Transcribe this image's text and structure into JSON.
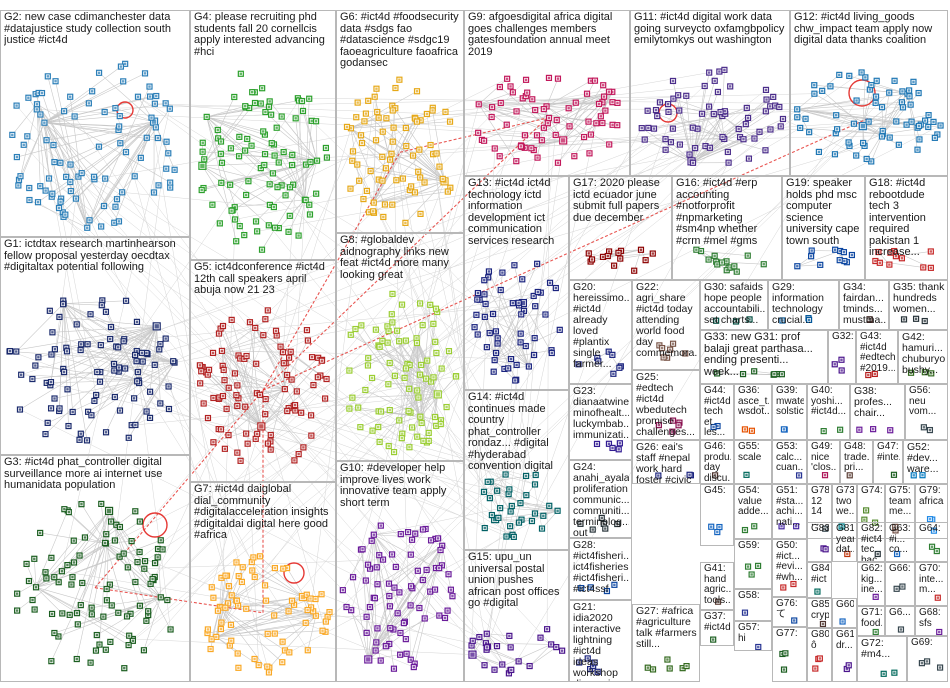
{
  "groups": [
    {
      "id": "G2",
      "label": "G2: new case cdimanchester data #datajustice study collection south justice #ict4d",
      "color": "#2c7fb8"
    },
    {
      "id": "G4",
      "label": "G4: please recruiting phd students fall 20 cornellcis apply interested advancing #hci",
      "color": "#2ca02c"
    },
    {
      "id": "G6",
      "label": "G6: #ict4d #foodsecurity data #sdgs fao #datascience #sdgc19 faoeagriculture faoafrica godansec",
      "color": "#e6a817"
    },
    {
      "id": "G9",
      "label": "G9: afgoesdigital africa digital goes challenges members gatesfoundation annual meet 2019",
      "color": "#c2185b"
    },
    {
      "id": "G11",
      "label": "G11: #ict4d digital work data going surveycto oxfamgbpolicy emilytomkys out washington",
      "color": "#4a2c8a"
    },
    {
      "id": "G12",
      "label": "G12: #ict4d living_goods chw_impact team apply now digital data thanks coalition",
      "color": "#1f77b4"
    },
    {
      "id": "G1",
      "label": "G1: ictdtax research martinhearson fellow proposal yesterday oecdtax #digitaltax potential following",
      "color": "#1a2a6c"
    },
    {
      "id": "G5",
      "label": "G5: ict4dconference #ict4d 12th call speakers april abuja now 21 23",
      "color": "#b22222"
    },
    {
      "id": "G8",
      "label": "G8: #globaldev aidnography links new feat #ict4d more many looking great",
      "color": "#9acd32"
    },
    {
      "id": "G13",
      "label": "G13: #ict4d ict4d technology ictd information development ict communication services research",
      "color": "#1a237e"
    },
    {
      "id": "G17",
      "label": "G17: 2020 please ictd ecuador june submit full papers due december",
      "color": "#8b0000"
    },
    {
      "id": "G16",
      "label": "G16: #ict4d #erp accounting #notforprofit #npmarketing #sm4np whether #crm #mel #gms",
      "color": "#2e7d32"
    },
    {
      "id": "G19",
      "label": "G19: speaker holds phd msc computer science university cape town south",
      "color": "#0d47a1"
    },
    {
      "id": "G18",
      "label": "G18: #ict4d rebootdude tech 3 intervention required pakistan 1 increase...",
      "color": "#c62828"
    },
    {
      "id": "G20",
      "label": "G20: hereissimo... #ict4d already loved #plantix single farmer...",
      "color": "#1a237e"
    },
    {
      "id": "G22",
      "label": "G22: agri_share #ict4d today attending world food day commemora...",
      "color": "#795548"
    },
    {
      "id": "G30",
      "label": "G30: safaids hope people accountabili... set charts...",
      "color": "#004d40"
    },
    {
      "id": "G29",
      "label": "G29: information technology crucial...",
      "color": "#01579b"
    },
    {
      "id": "G34",
      "label": "G34: fairdan... tminds... mustma...",
      "color": "#3e2723"
    },
    {
      "id": "G35",
      "label": "G35: thank hundreds women...",
      "color": "#263238"
    },
    {
      "id": "G33",
      "label": "G33: new G31: prof balaji great parthasa... ending presenti... week...",
      "color": "#1b5e20"
    },
    {
      "id": "G32",
      "label": "G32:",
      "color": "#4a148c"
    },
    {
      "id": "G43",
      "label": "G43: #ict4d #edtech #2019...",
      "color": "#b71c1c"
    },
    {
      "id": "G42",
      "label": "G42: hamuri... chuburyo bushy...",
      "color": "#33691e"
    },
    {
      "id": "G14",
      "label": "G14: #ict4d continues made country phat_controller rondaz... #digital #hyderabad convention digital",
      "color": "#006064"
    },
    {
      "id": "G23",
      "label": "G23: dianaatwine minofhealt... luckymbab... immunizati...",
      "color": "#311b92"
    },
    {
      "id": "G25",
      "label": "G25: #edtech #ict4d wbedutech promise challenges...",
      "color": "#880e4f"
    },
    {
      "id": "G44",
      "label": "G44: #ict4d tech et les...",
      "color": "#0d47a1"
    },
    {
      "id": "G36",
      "label": "G36: asce_t... wsdot...",
      "color": "#e65100"
    },
    {
      "id": "G39",
      "label": "G39: mwater solstic...",
      "color": "#1565c0"
    },
    {
      "id": "G40",
      "label": "G40: yoshi... #ict4d...",
      "color": "#2e7d32"
    },
    {
      "id": "G38",
      "label": "G38: profes... chair...",
      "color": "#6a1b9a"
    },
    {
      "id": "G56",
      "label": "G56: neu vom...",
      "color": "#37474f"
    },
    {
      "id": "G26",
      "label": "G26: eai's staff #nepal work hard foster #civic engageme...",
      "color": "#1a237e"
    },
    {
      "id": "G46",
      "label": "G46: produ... day discu...",
      "color": "#4e342e"
    },
    {
      "id": "G55",
      "label": "G55: scale",
      "color": "#00695c"
    },
    {
      "id": "G53",
      "label": "G53: calc... cuan...",
      "color": "#283593"
    },
    {
      "id": "G49",
      "label": "G49: nice 'clos...",
      "color": "#ad1457"
    },
    {
      "id": "G48",
      "label": "G48: trade... pri...",
      "color": "#5d4037"
    },
    {
      "id": "G47",
      "label": "G47: #inte...",
      "color": "#1b5e20"
    },
    {
      "id": "G52",
      "label": "G52: #dev... ware...",
      "color": "#0277bd"
    },
    {
      "id": "G3",
      "label": "G3: #ict4d phat_controller digital surveillance more ai internet use humanidata population",
      "color": "#1b5e20"
    },
    {
      "id": "G7",
      "label": "G7: #ict4d daiglobal dial_community #digitalacceleration insights #digitaldai digital here good #africa",
      "color": "#f9a825"
    },
    {
      "id": "G10",
      "label": "G10: #developer help improve lives work innovative team apply short term",
      "color": "#6a1b9a"
    },
    {
      "id": "G24",
      "label": "G24: anahi_ayala proliferation communic... communiti... terminolog... out control...",
      "color": "#263238"
    },
    {
      "id": "G45",
      "label": "G45:",
      "color": "#1565c0"
    },
    {
      "id": "G54",
      "label": "G54: value adde...",
      "color": "#2e7d32"
    },
    {
      "id": "G51",
      "label": "G51: #sta... achi... nati...",
      "color": "#4527a0"
    },
    {
      "id": "G78",
      "label": "G78: 12 14 ...",
      "color": "#37474f"
    },
    {
      "id": "G73",
      "label": "G73: two we...",
      "color": "#00838f"
    },
    {
      "id": "G74",
      "label": "G74:",
      "color": "#558b2f"
    },
    {
      "id": "G75",
      "label": "G75: team me...",
      "color": "#6d4c41"
    },
    {
      "id": "G79",
      "label": "G79: africa",
      "color": "#1e88e5"
    },
    {
      "id": "G28",
      "label": "G28: #ict4fisheri... ict4fisheries #ict4fisheri... #ict4ssf",
      "color": "#0d47a1"
    },
    {
      "id": "G59",
      "label": "G59:",
      "color": "#2e7d32"
    },
    {
      "id": "G50",
      "label": "G50: #ict... #evi... #wh...",
      "color": "#c62828"
    },
    {
      "id": "G83",
      "label": "G83:",
      "color": "#4a148c"
    },
    {
      "id": "G81",
      "label": "G81: year dat...",
      "color": "#bf360c"
    },
    {
      "id": "G82",
      "label": "G82: #ict4d tec bac...",
      "color": "#263238"
    },
    {
      "id": "G63",
      "label": "G63: #i... co...",
      "color": "#1565c0"
    },
    {
      "id": "G64",
      "label": "G64:",
      "color": "#2e7d32"
    },
    {
      "id": "G15",
      "label": "G15: upu_un universal postal union pushes african post offices go #digital",
      "color": "#4a148c"
    },
    {
      "id": "G21",
      "label": "G21: idia2020 interactive lightning #ict4d ideas workshop discussion...",
      "color": "#1a237e"
    },
    {
      "id": "G41",
      "label": "G41: hand agric... tools...",
      "color": "#5d4037"
    },
    {
      "id": "G58",
      "label": "G58:",
      "color": "#283593"
    },
    {
      "id": "G84",
      "label": "G84: #ict",
      "color": "#00695c"
    },
    {
      "id": "G62",
      "label": "G62: kig... ine...",
      "color": "#6a1b9a"
    },
    {
      "id": "G66",
      "label": "G66:",
      "color": "#37474f"
    },
    {
      "id": "G70",
      "label": "G70: inte... m...",
      "color": "#c62828"
    },
    {
      "id": "G27",
      "label": "G27: #africa #agriculture talk #farmers still...",
      "color": "#33691e"
    },
    {
      "id": "G37",
      "label": "G37: #ict4d",
      "color": "#1b5e20"
    },
    {
      "id": "G76",
      "label": "G76: て",
      "color": "#0d47a1"
    },
    {
      "id": "G85",
      "label": "G85: cryp...",
      "color": "#4e342e"
    },
    {
      "id": "G60",
      "label": "G60:",
      "color": "#1565c0"
    },
    {
      "id": "G71",
      "label": "G71: food...",
      "color": "#2e7d32"
    },
    {
      "id": "G6x",
      "label": "G6...",
      "color": "#37474f"
    },
    {
      "id": "G68",
      "label": "G68: sfs",
      "color": "#6a1b9a"
    },
    {
      "id": "G57",
      "label": "G57: hi",
      "color": "#283593"
    },
    {
      "id": "G77",
      "label": "G77:",
      "color": "#1b5e20"
    },
    {
      "id": "G80",
      "label": "G80: ô",
      "color": "#c62828"
    },
    {
      "id": "G61",
      "label": "G61: dr...",
      "color": "#4a148c"
    },
    {
      "id": "G72",
      "label": "G72: #m4...",
      "color": "#00695c"
    },
    {
      "id": "G69",
      "label": "G69:",
      "color": "#37474f"
    }
  ]
}
